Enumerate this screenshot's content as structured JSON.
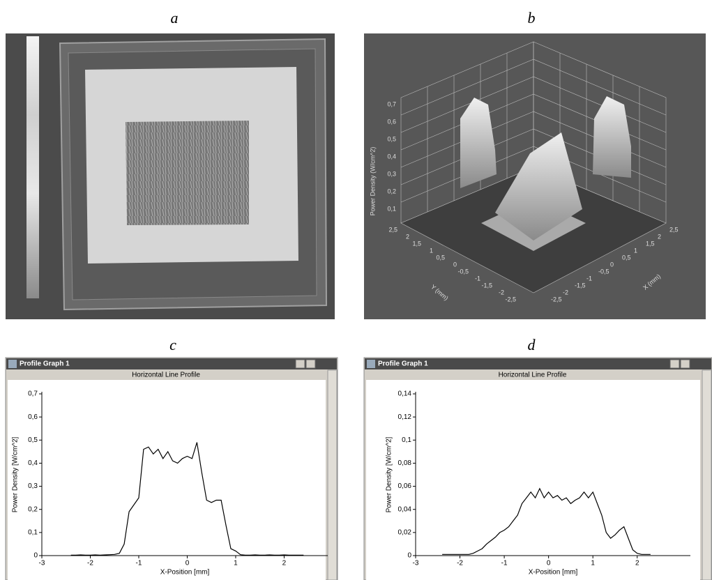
{
  "panels": [
    {
      "label": "a"
    },
    {
      "label": "b",
      "z_label": "Power Density (W/cm^2)",
      "y_label": "Y (mm)",
      "x_label": "X (mm)",
      "z_ticks": [
        "0,1",
        "0,2",
        "0,3",
        "0,4",
        "0,5",
        "0,6",
        "0,7"
      ],
      "y_ticks": [
        "2,5",
        "2",
        "1,5",
        "1",
        "0,5",
        "0",
        "-0,5",
        "-1",
        "-1,5",
        "-2",
        "-2,5"
      ],
      "x_ticks": [
        "-2,5",
        "-2",
        "-1,5",
        "-1",
        "-0,5",
        "0",
        "0,5",
        "1",
        "1,5",
        "2",
        "2,5"
      ]
    },
    {
      "label": "c"
    },
    {
      "label": "d"
    }
  ],
  "chart_data": [
    {
      "type": "line",
      "window_title": "Profile Graph 1",
      "title": "Horizontal Line Profile",
      "x_label": "X-Position [mm]",
      "y_label": "Power Density [W/cm^2]",
      "color": "#000000",
      "xlim": [
        -3,
        2.9
      ],
      "ylim": [
        0,
        0.7
      ],
      "xticks": [
        -3,
        -2,
        -1,
        0,
        1,
        2
      ],
      "yticks": [
        0,
        {
          "value": 0.1,
          "label": "0,1"
        },
        {
          "value": 0.2,
          "label": "0,2"
        },
        {
          "value": 0.3,
          "label": "0,3"
        },
        {
          "value": 0.4,
          "label": "0,4"
        },
        {
          "value": 0.5,
          "label": "0,5"
        },
        {
          "value": 0.6,
          "label": "0,6"
        },
        {
          "value": 0.7,
          "label": "0,7"
        }
      ],
      "x": [
        -2.4,
        -2.3,
        -2.2,
        -2.1,
        -2.0,
        -1.9,
        -1.8,
        -1.7,
        -1.6,
        -1.5,
        -1.4,
        -1.3,
        -1.2,
        -1.1,
        -1.0,
        -0.9,
        -0.8,
        -0.7,
        -0.6,
        -0.5,
        -0.4,
        -0.3,
        -0.2,
        -0.1,
        0,
        0.1,
        0.2,
        0.3,
        0.4,
        0.5,
        0.6,
        0.7,
        0.8,
        0.9,
        1.0,
        1.1,
        1.2,
        1.3,
        1.4,
        1.5,
        1.6,
        1.7,
        1.8,
        1.9,
        2.0,
        2.1,
        2.2,
        2.3,
        2.4
      ],
      "values": [
        0.002,
        0.002,
        0.003,
        0.002,
        0.002,
        0.003,
        0.002,
        0.003,
        0.004,
        0.005,
        0.01,
        0.05,
        0.19,
        0.22,
        0.25,
        0.46,
        0.47,
        0.44,
        0.46,
        0.42,
        0.45,
        0.41,
        0.4,
        0.42,
        0.43,
        0.42,
        0.49,
        0.36,
        0.24,
        0.23,
        0.24,
        0.24,
        0.13,
        0.03,
        0.02,
        0.004,
        0.002,
        0.002,
        0.003,
        0.002,
        0.002,
        0.003,
        0.002,
        0.002,
        0.003,
        0.002,
        0.002,
        0.002,
        0.002
      ]
    },
    {
      "type": "line",
      "window_title": "Profile Graph 1",
      "title": "Horizontal Line Profile",
      "x_label": "X-Position [mm]",
      "y_label": "Power Density [W/cm^2]",
      "color": "#000000",
      "xlim": [
        -3,
        3.2
      ],
      "ylim": [
        0,
        0.14
      ],
      "xticks": [
        -3,
        -2,
        -1,
        0,
        1,
        2
      ],
      "yticks": [
        0,
        {
          "value": 0.02,
          "label": "0,02"
        },
        {
          "value": 0.04,
          "label": "0,04"
        },
        {
          "value": 0.06,
          "label": "0,06"
        },
        {
          "value": 0.08,
          "label": "0,08"
        },
        {
          "value": 0.1,
          "label": "0,1"
        },
        {
          "value": 0.12,
          "label": "0,12"
        },
        {
          "value": 0.14,
          "label": "0,14"
        }
      ],
      "x": [
        -2.4,
        -2.3,
        -2.2,
        -2.1,
        -2.0,
        -1.9,
        -1.8,
        -1.7,
        -1.6,
        -1.5,
        -1.4,
        -1.3,
        -1.2,
        -1.1,
        -1.0,
        -0.9,
        -0.8,
        -0.7,
        -0.6,
        -0.5,
        -0.4,
        -0.3,
        -0.2,
        -0.1,
        0,
        0.1,
        0.2,
        0.3,
        0.4,
        0.5,
        0.6,
        0.7,
        0.8,
        0.9,
        1.0,
        1.1,
        1.2,
        1.3,
        1.4,
        1.5,
        1.6,
        1.7,
        1.8,
        1.9,
        2.0,
        2.1,
        2.2,
        2.3
      ],
      "values": [
        0.001,
        0.001,
        0.001,
        0.001,
        0.001,
        0.001,
        0.001,
        0.002,
        0.004,
        0.006,
        0.01,
        0.013,
        0.016,
        0.02,
        0.022,
        0.025,
        0.03,
        0.035,
        0.045,
        0.05,
        0.055,
        0.05,
        0.058,
        0.05,
        0.055,
        0.05,
        0.052,
        0.048,
        0.05,
        0.045,
        0.048,
        0.05,
        0.055,
        0.05,
        0.055,
        0.045,
        0.035,
        0.02,
        0.015,
        0.018,
        0.022,
        0.025,
        0.015,
        0.005,
        0.002,
        0.001,
        0.001,
        0.001
      ]
    }
  ]
}
